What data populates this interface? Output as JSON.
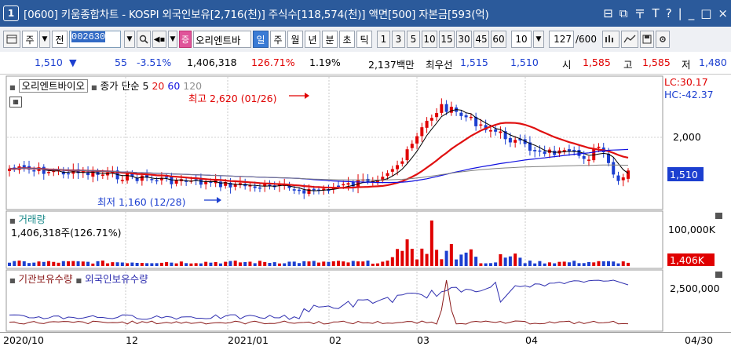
{
  "title": {
    "window_number": "1",
    "text": "[0600] 키움종합차트 - KOSPI 외국인보유[2,716(천)] 주식수[118,574(천)] 액면[500] 자본금[593(억)",
    "buttons": [
      "⊟",
      "⧉",
      "〒",
      "T",
      "?",
      "|",
      "_",
      "□",
      "×"
    ]
  },
  "toolbar": {
    "period_unit": "주",
    "prev_label": "전",
    "stock_code": "002630",
    "stock_name": "오리엔트바",
    "sec_badge": "증",
    "periods": [
      "일",
      "주",
      "월",
      "년"
    ],
    "intraday": [
      "분",
      "초",
      "틱"
    ],
    "minute_options": [
      "1",
      "3",
      "5",
      "10",
      "15",
      "30",
      "45",
      "60"
    ],
    "selected_period": "일",
    "interval_value": "10",
    "count_current": "127",
    "count_total": "/600"
  },
  "quote": {
    "price": "1,510",
    "change_arrow": "▼",
    "change": "55",
    "change_pct": "-3.51%",
    "volume": "1,406,318",
    "volume_ratio": "126.71%",
    "turnover": "1.19%",
    "amount": "2,137백만",
    "best_label": "최우선",
    "best_ask": "1,515",
    "best_bid": "1,510",
    "open_label": "시",
    "open": "1,585",
    "high_label": "고",
    "high": "1,585",
    "low_label": "저",
    "low": "1,480"
  },
  "price_panel": {
    "stock_tag": "오리엔트바이오",
    "ma_label": "종가 단순 5",
    "ma_values": [
      "20",
      "60",
      "120"
    ],
    "high_annotation": "최고 2,620 (01/26)",
    "low_annotation": "최저 1,160 (12/28)",
    "lc": "LC:30.17",
    "hc": "HC:-42.37",
    "axis_tick": "2,000",
    "current_price_tag": "1,510"
  },
  "volume_panel": {
    "label": "거래량",
    "value": "1,406,318주(126.71%)",
    "axis_tick": "100,000K",
    "current_tag": "1,406K"
  },
  "holding_panel": {
    "label_institution": "기관보유수량",
    "label_foreign": "외국인보유수량",
    "axis_tick": "2,500,000"
  },
  "x_axis": {
    "labels": [
      "2020/10",
      "12",
      "2021/01",
      "02",
      "03",
      "04",
      "04/30"
    ]
  },
  "colors": {
    "title_bg": "#2b5a9b",
    "up": "#e00000",
    "down": "#1c3fd0",
    "ma5": "#000000",
    "ma20": "#e01010",
    "ma60": "#1010e0",
    "ma120": "#808080",
    "foreign_line": "#3030b0",
    "inst_line": "#8b1a1a"
  }
}
